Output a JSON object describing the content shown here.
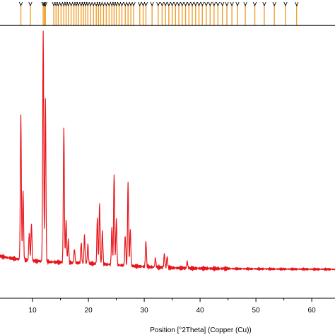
{
  "chart_data": {
    "type": "line",
    "title": "",
    "xlabel": "Position [°2Theta] (Copper (Cu))",
    "ylabel": "",
    "xlim": [
      0,
      67
    ],
    "ylim": [
      0,
      100
    ],
    "grid": false,
    "legend": "none",
    "x_ticks": [
      10,
      20,
      30,
      40,
      50,
      60
    ],
    "colors": {
      "pattern": "#e8151b",
      "reference_lines": "#f0a030",
      "axes": "#000000"
    },
    "peaks": [
      {
        "x": 7.9,
        "y": 62
      },
      {
        "x": 8.3,
        "y": 30
      },
      {
        "x": 9.4,
        "y": 12
      },
      {
        "x": 9.8,
        "y": 16
      },
      {
        "x": 11.9,
        "y": 100
      },
      {
        "x": 12.3,
        "y": 70
      },
      {
        "x": 15.6,
        "y": 58
      },
      {
        "x": 16.0,
        "y": 18
      },
      {
        "x": 16.4,
        "y": 10
      },
      {
        "x": 17.5,
        "y": 6
      },
      {
        "x": 18.7,
        "y": 9
      },
      {
        "x": 19.3,
        "y": 12
      },
      {
        "x": 19.9,
        "y": 8
      },
      {
        "x": 21.6,
        "y": 20
      },
      {
        "x": 22.0,
        "y": 26
      },
      {
        "x": 22.5,
        "y": 14
      },
      {
        "x": 24.2,
        "y": 16
      },
      {
        "x": 24.6,
        "y": 40
      },
      {
        "x": 25.0,
        "y": 20
      },
      {
        "x": 26.6,
        "y": 13
      },
      {
        "x": 27.1,
        "y": 36
      },
      {
        "x": 27.5,
        "y": 16
      },
      {
        "x": 30.3,
        "y": 11
      },
      {
        "x": 32.0,
        "y": 4
      },
      {
        "x": 33.6,
        "y": 6
      },
      {
        "x": 34.1,
        "y": 5
      },
      {
        "x": 37.7,
        "y": 3
      }
    ],
    "reference_lines_x": [
      7.9,
      9.6,
      11.9,
      12.1,
      12.3,
      13.8,
      14.2,
      14.6,
      15.1,
      15.6,
      16.0,
      16.4,
      16.9,
      17.4,
      17.8,
      18.2,
      18.7,
      19.1,
      19.5,
      19.9,
      20.4,
      20.9,
      21.4,
      21.8,
      22.2,
      22.7,
      23.2,
      23.7,
      24.2,
      24.6,
      25.0,
      25.5,
      26.0,
      26.6,
      27.1,
      27.6,
      28.1,
      29.2,
      29.8,
      30.3,
      31.4,
      32.5,
      33.2,
      33.8,
      34.4,
      35.0,
      35.6,
      36.2,
      36.8,
      37.4,
      38.0,
      38.6,
      39.2,
      39.8,
      40.4,
      41.1,
      41.8,
      42.5,
      43.2,
      44.0,
      44.8,
      45.7,
      46.7,
      48.1,
      49.8,
      51.5,
      53.3,
      55.3,
      57.3
    ]
  }
}
